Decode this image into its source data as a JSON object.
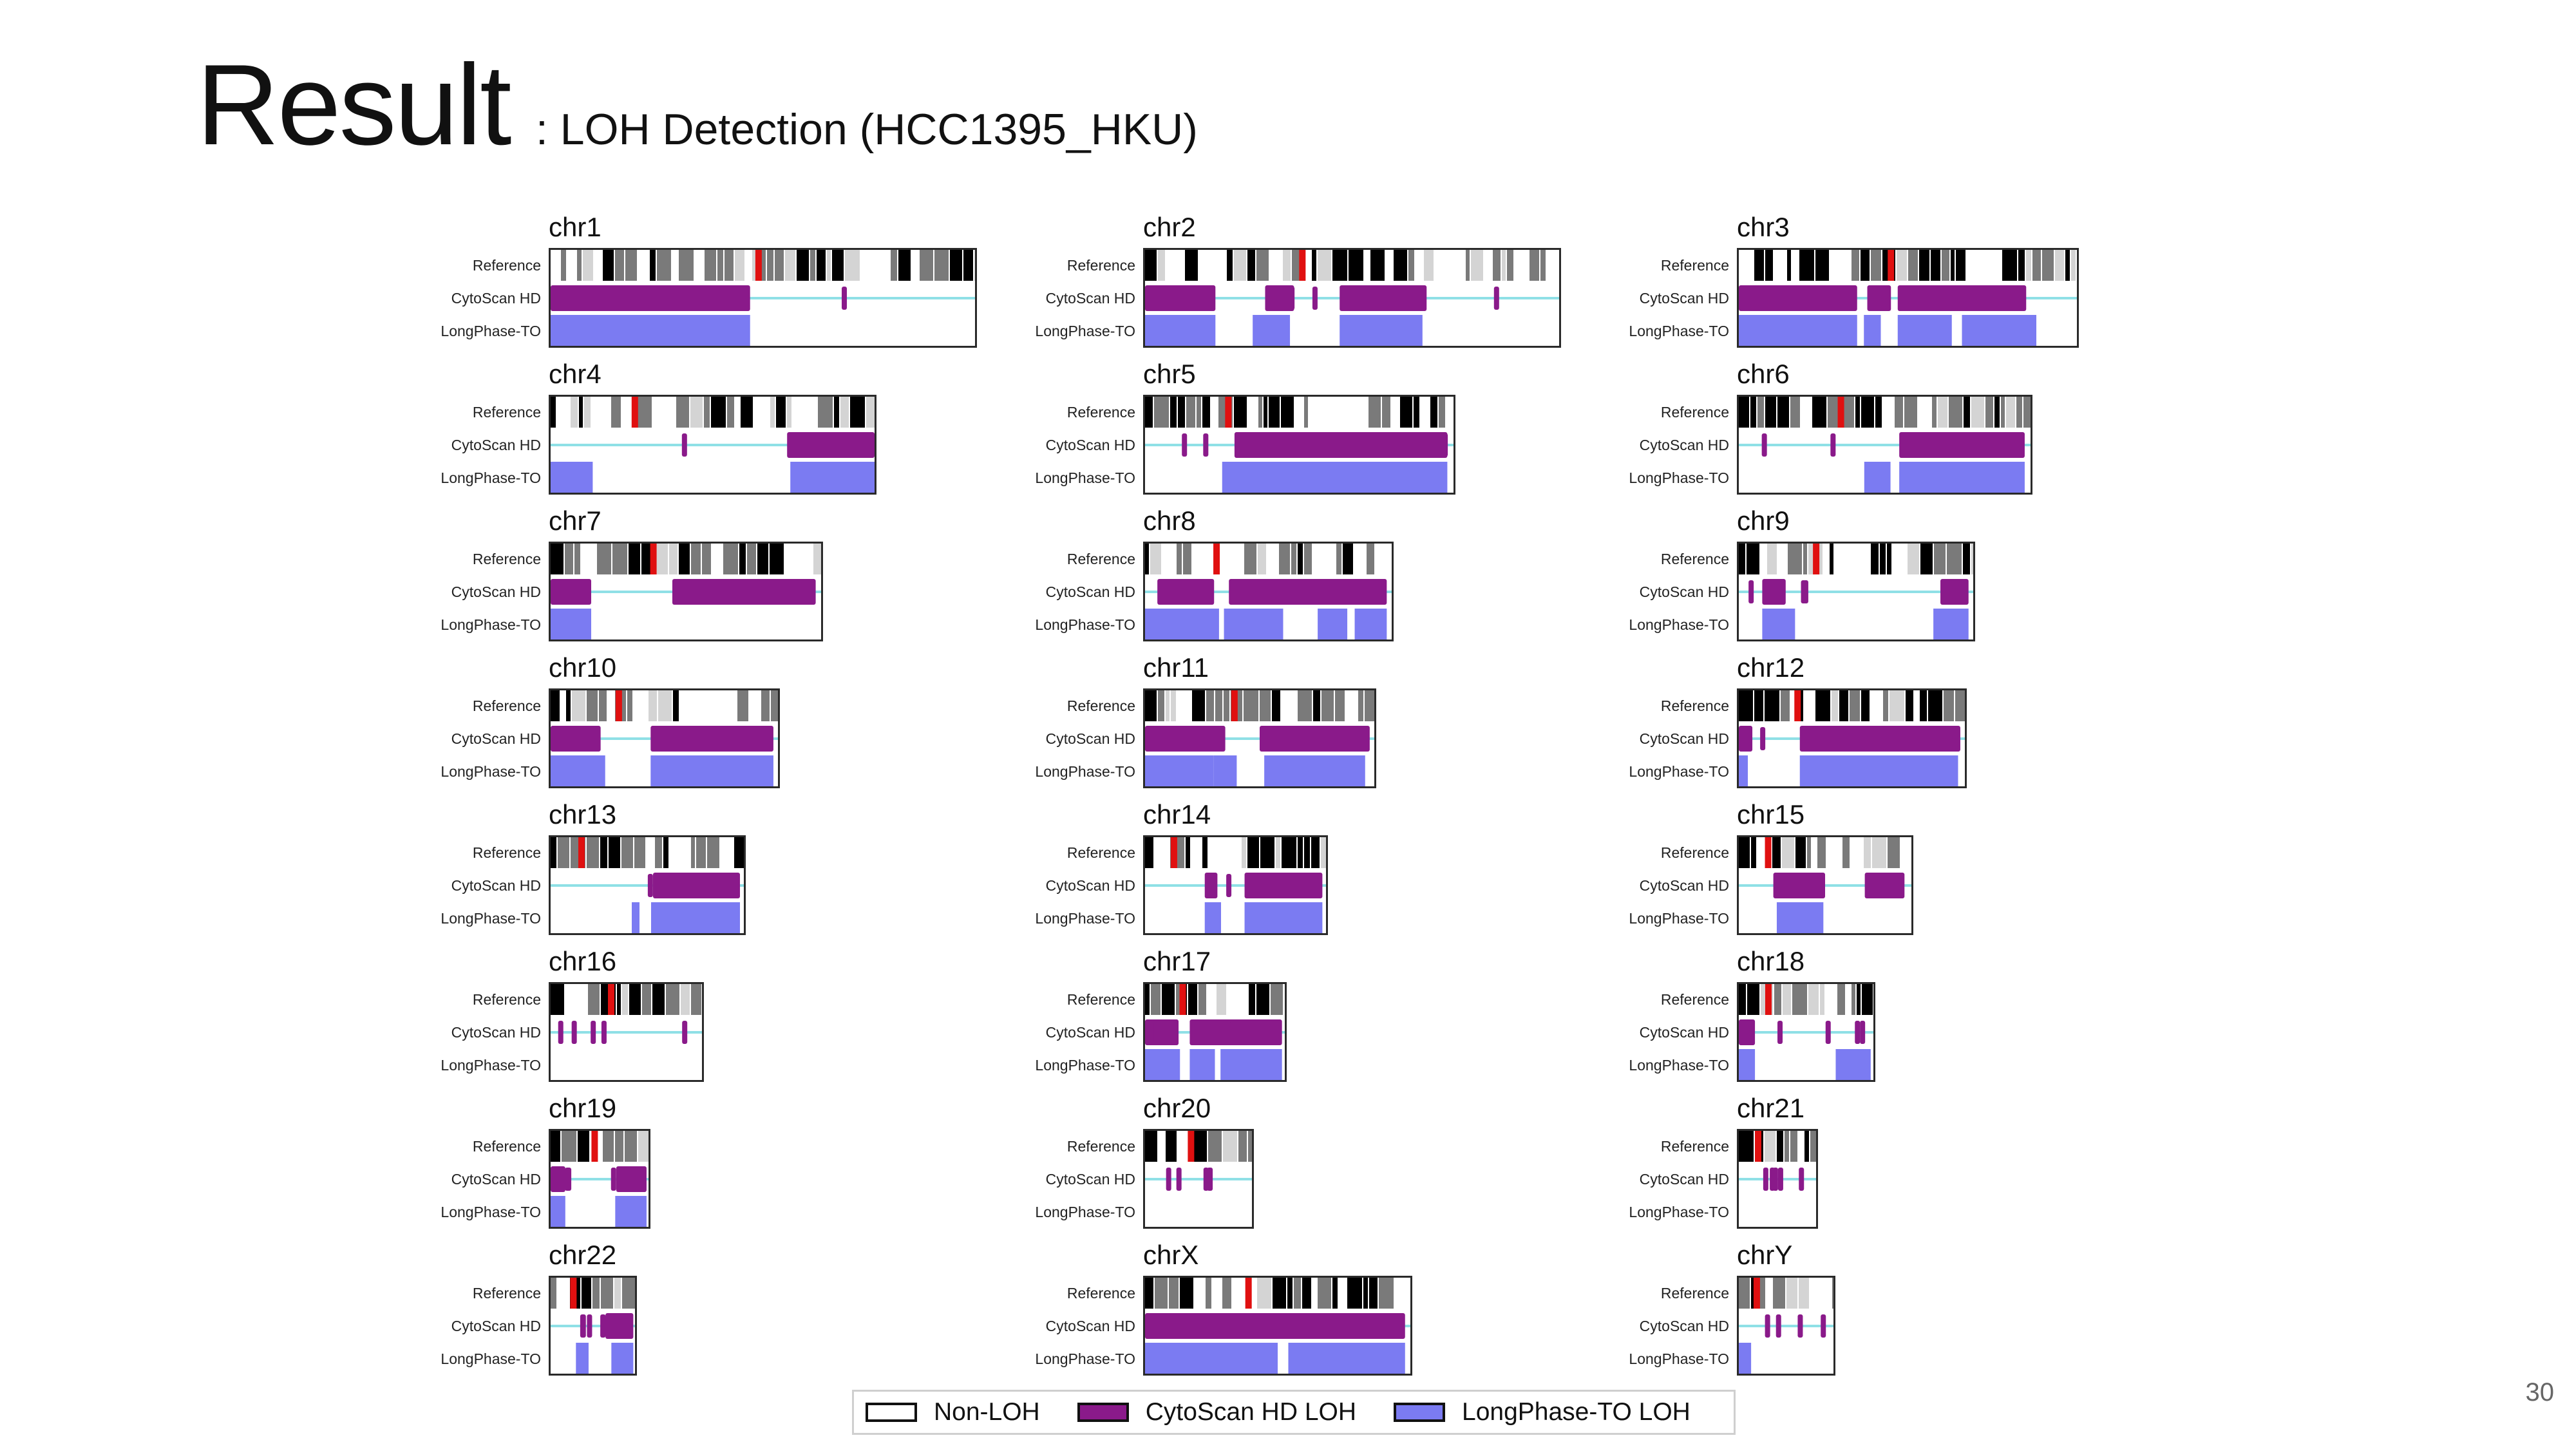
{
  "title": {
    "main": "Result",
    "sub": ": LOH Detection (HCC1395_HKU)"
  },
  "row_labels": [
    "Reference",
    "CytoScan HD",
    "LongPhase-TO"
  ],
  "colors": {
    "band_dark": "#000000",
    "band_gray": "#7a7a7a",
    "band_light": "#d4d4d4",
    "centromere": "#e01010",
    "cytoscan_loh": "#8a1a8a",
    "longphase_loh": "#7b7bf2",
    "baseline": "#8fe0e6",
    "frame": "#2a2a2a"
  },
  "legend": [
    {
      "label": "Non-LOH",
      "fill": "#ffffff"
    },
    {
      "label": "CytoScan HD LOH",
      "fill": "#8a1a8a"
    },
    {
      "label": "LongPhase-TO LOH",
      "fill": "#7b7bf2"
    }
  ],
  "page_number": "30",
  "chart_data": {
    "type": "heatmap",
    "description_rows": [
      "Reference",
      "CytoScan HD",
      "LongPhase-TO"
    ],
    "chromosomes": [
      {
        "name": "chr1",
        "size": 248,
        "centromere": 0.49,
        "cytoscan_loh": [
          [
            0,
            0.47
          ]
        ],
        "longphase_loh": [
          [
            0,
            0.47
          ]
        ]
      },
      {
        "name": "chr2",
        "size": 242,
        "centromere": 0.38,
        "cytoscan_loh": [
          [
            0,
            0.17
          ],
          [
            0.29,
            0.36
          ],
          [
            0.47,
            0.68
          ]
        ],
        "longphase_loh": [
          [
            0,
            0.17
          ],
          [
            0.26,
            0.35
          ],
          [
            0.47,
            0.67
          ]
        ]
      },
      {
        "name": "chr3",
        "size": 198,
        "centromere": 0.45,
        "cytoscan_loh": [
          [
            0,
            0.35
          ],
          [
            0.38,
            0.45
          ],
          [
            0.47,
            0.85
          ]
        ],
        "longphase_loh": [
          [
            0,
            0.35
          ],
          [
            0.37,
            0.42
          ],
          [
            0.47,
            0.63
          ],
          [
            0.66,
            0.88
          ]
        ]
      },
      {
        "name": "chr4",
        "size": 190,
        "centromere": 0.26,
        "cytoscan_loh": [
          [
            0.73,
            1.0
          ]
        ],
        "longphase_loh": [
          [
            0,
            0.13
          ],
          [
            0.74,
            1.0
          ]
        ]
      },
      {
        "name": "chr5",
        "size": 181,
        "centromere": 0.27,
        "cytoscan_loh": [
          [
            0.29,
            0.98
          ]
        ],
        "longphase_loh": [
          [
            0.25,
            0.98
          ]
        ]
      },
      {
        "name": "chr6",
        "size": 171,
        "centromere": 0.35,
        "cytoscan_loh": [
          [
            0.55,
            0.98
          ]
        ],
        "longphase_loh": [
          [
            0.43,
            0.52
          ],
          [
            0.55,
            0.98
          ]
        ]
      },
      {
        "name": "chr7",
        "size": 159,
        "centromere": 0.38,
        "cytoscan_loh": [
          [
            0,
            0.15
          ],
          [
            0.45,
            0.98
          ]
        ],
        "longphase_loh": [
          [
            0,
            0.15
          ]
        ]
      },
      {
        "name": "chr8",
        "size": 145,
        "centromere": 0.29,
        "cytoscan_loh": [
          [
            0.05,
            0.28
          ],
          [
            0.34,
            0.98
          ]
        ],
        "longphase_loh": [
          [
            0,
            0.3
          ],
          [
            0.32,
            0.56
          ],
          [
            0.7,
            0.82
          ],
          [
            0.85,
            0.98
          ]
        ]
      },
      {
        "name": "chr9",
        "size": 138,
        "centromere": 0.33,
        "cytoscan_loh": [
          [
            0.1,
            0.2
          ],
          [
            0.86,
            0.98
          ]
        ],
        "longphase_loh": [
          [
            0.1,
            0.24
          ],
          [
            0.83,
            0.98
          ]
        ]
      },
      {
        "name": "chr10",
        "size": 134,
        "centromere": 0.3,
        "cytoscan_loh": [
          [
            0,
            0.22
          ],
          [
            0.44,
            0.98
          ]
        ],
        "longphase_loh": [
          [
            0,
            0.24
          ],
          [
            0.44,
            0.98
          ]
        ]
      },
      {
        "name": "chr11",
        "size": 135,
        "centromere": 0.39,
        "cytoscan_loh": [
          [
            0,
            0.35
          ],
          [
            0.5,
            0.98
          ]
        ],
        "longphase_loh": [
          [
            0,
            0.3
          ],
          [
            0.3,
            0.4
          ],
          [
            0.52,
            0.96
          ]
        ]
      },
      {
        "name": "chr12",
        "size": 133,
        "centromere": 0.26,
        "cytoscan_loh": [
          [
            0,
            0.06
          ],
          [
            0.27,
            0.98
          ]
        ],
        "longphase_loh": [
          [
            0,
            0.04
          ],
          [
            0.27,
            0.97
          ]
        ]
      },
      {
        "name": "chr13",
        "size": 114,
        "centromere": 0.16,
        "cytoscan_loh": [
          [
            0.53,
            0.98
          ]
        ],
        "longphase_loh": [
          [
            0.42,
            0.46
          ],
          [
            0.52,
            0.98
          ]
        ]
      },
      {
        "name": "chr14",
        "size": 107,
        "centromere": 0.16,
        "cytoscan_loh": [
          [
            0.33,
            0.4
          ],
          [
            0.55,
            0.98
          ]
        ],
        "longphase_loh": [
          [
            0.33,
            0.42
          ],
          [
            0.55,
            0.98
          ]
        ]
      },
      {
        "name": "chr15",
        "size": 102,
        "centromere": 0.17,
        "cytoscan_loh": [
          [
            0.2,
            0.5
          ],
          [
            0.73,
            0.96
          ]
        ],
        "longphase_loh": [
          [
            0.22,
            0.49
          ]
        ]
      },
      {
        "name": "chr16",
        "size": 90,
        "centromere": 0.4,
        "cytoscan_loh": [],
        "longphase_loh": []
      },
      {
        "name": "chr17",
        "size": 83,
        "centromere": 0.27,
        "cytoscan_loh": [
          [
            0,
            0.24
          ],
          [
            0.32,
            0.98
          ]
        ],
        "longphase_loh": [
          [
            0,
            0.25
          ],
          [
            0.32,
            0.5
          ],
          [
            0.54,
            0.98
          ]
        ]
      },
      {
        "name": "chr18",
        "size": 80,
        "centromere": 0.22,
        "cytoscan_loh": [
          [
            0,
            0.12
          ]
        ],
        "longphase_loh": [
          [
            0,
            0.12
          ],
          [
            0.72,
            0.98
          ]
        ]
      },
      {
        "name": "chr19",
        "size": 59,
        "centromere": 0.45,
        "cytoscan_loh": [
          [
            0,
            0.15
          ],
          [
            0.67,
            0.98
          ]
        ],
        "longphase_loh": [
          [
            0,
            0.15
          ],
          [
            0.66,
            0.98
          ]
        ]
      },
      {
        "name": "chr20",
        "size": 64,
        "centromere": 0.43,
        "cytoscan_loh": [],
        "longphase_loh": []
      },
      {
        "name": "chr21",
        "size": 47,
        "centromere": 0.25,
        "cytoscan_loh": [],
        "longphase_loh": []
      },
      {
        "name": "chr22",
        "size": 51,
        "centromere": 0.27,
        "cytoscan_loh": [
          [
            0.65,
            0.98
          ]
        ],
        "longphase_loh": [
          [
            0.3,
            0.45
          ],
          [
            0.72,
            0.98
          ]
        ]
      },
      {
        "name": "chrX",
        "size": 156,
        "centromere": 0.39,
        "cytoscan_loh": [
          [
            0,
            0.58
          ],
          [
            0.56,
            0.98
          ]
        ],
        "longphase_loh": [
          [
            0,
            0.5
          ],
          [
            0.54,
            0.98
          ]
        ]
      },
      {
        "name": "chrY",
        "size": 57,
        "centromere": 0.19,
        "cytoscan_loh": [],
        "longphase_loh": [
          [
            0,
            0.13
          ]
        ]
      }
    ]
  }
}
